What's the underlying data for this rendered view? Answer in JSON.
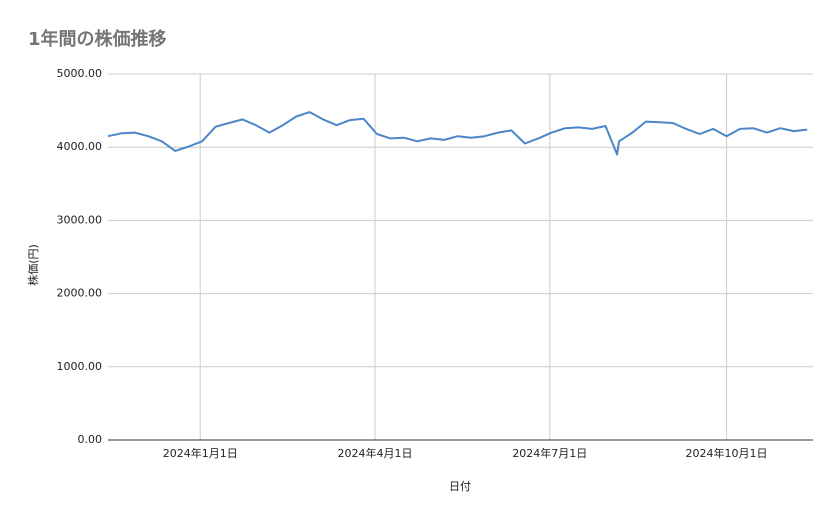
{
  "chart_data": {
    "type": "line",
    "title": "1年間の株価推移",
    "x_label": "日付",
    "y_label": "株価(円)",
    "x": [
      "2023-11-14",
      "2023-11-21",
      "2023-11-28",
      "2023-12-05",
      "2023-12-12",
      "2023-12-19",
      "2023-12-26",
      "2024-01-02",
      "2024-01-09",
      "2024-01-16",
      "2024-01-23",
      "2024-01-30",
      "2024-02-06",
      "2024-02-13",
      "2024-02-20",
      "2024-02-27",
      "2024-03-05",
      "2024-03-12",
      "2024-03-19",
      "2024-03-26",
      "2024-04-02",
      "2024-04-09",
      "2024-04-16",
      "2024-04-23",
      "2024-04-30",
      "2024-05-07",
      "2024-05-14",
      "2024-05-21",
      "2024-05-28",
      "2024-06-04",
      "2024-06-11",
      "2024-06-18",
      "2024-06-25",
      "2024-07-02",
      "2024-07-09",
      "2024-07-16",
      "2024-07-23",
      "2024-07-30",
      "2024-08-05",
      "2024-08-06",
      "2024-08-13",
      "2024-08-20",
      "2024-08-27",
      "2024-09-03",
      "2024-09-10",
      "2024-09-17",
      "2024-09-24",
      "2024-10-01",
      "2024-10-08",
      "2024-10-15",
      "2024-10-22",
      "2024-10-29",
      "2024-11-05",
      "2024-11-12"
    ],
    "series": [
      {
        "name": "株価",
        "color": "#4a86c8",
        "values": [
          4150,
          4190,
          4200,
          4150,
          4080,
          3950,
          4010,
          4080,
          4280,
          4330,
          4380,
          4300,
          4200,
          4300,
          4420,
          4480,
          4380,
          4300,
          4370,
          4390,
          4180,
          4120,
          4130,
          4080,
          4120,
          4100,
          4150,
          4130,
          4150,
          4200,
          4230,
          4050,
          4120,
          4200,
          4260,
          4270,
          4250,
          4290,
          3900,
          4080,
          4200,
          4350,
          4340,
          4330,
          4250,
          4180,
          4250,
          4150,
          4250,
          4260,
          4200,
          4260,
          4220,
          4240
        ]
      }
    ],
    "xlim": [
      "2023-11-14",
      "2024-11-15"
    ],
    "xticks": [
      {
        "value": "2024-01-01",
        "label": "2024年1月1日"
      },
      {
        "value": "2024-04-01",
        "label": "2024年4月1日"
      },
      {
        "value": "2024-07-01",
        "label": "2024年7月1日"
      },
      {
        "value": "2024-10-01",
        "label": "2024年10月1日"
      }
    ],
    "ylim": [
      0,
      5000
    ],
    "yticks": [
      {
        "value": 0,
        "label": "0.00"
      },
      {
        "value": 1000,
        "label": "1000.00"
      },
      {
        "value": 2000,
        "label": "2000.00"
      },
      {
        "value": 3000,
        "label": "3000.00"
      },
      {
        "value": 4000,
        "label": "4000.00"
      },
      {
        "value": 5000,
        "label": "5000.00"
      }
    ],
    "grid": true
  }
}
